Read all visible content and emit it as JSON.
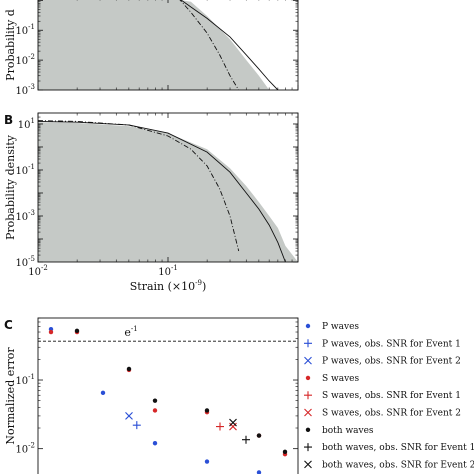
{
  "chart_data": [
    {
      "panel": "",
      "type": "area",
      "title": "",
      "xlabel": "",
      "ylabel": "Probability d",
      "yscale": "log",
      "xscale": "log",
      "xlim": [
        0.01,
        1.0
      ],
      "ylim": [
        0.001,
        1.2
      ],
      "y_tick_labels": [
        "10^{-1}",
        "10^{-2}",
        "10^{-3}"
      ],
      "series": [
        {
          "style": "histogram",
          "color": "#c5c9c6",
          "x": [
            0.01,
            0.02,
            0.05,
            0.1,
            0.15,
            0.2,
            0.3,
            0.4,
            0.5,
            0.6
          ],
          "y": [
            1.2,
            1.2,
            1.2,
            1.2,
            0.9,
            0.3,
            0.05,
            0.01,
            0.003,
            0.001
          ]
        },
        {
          "style": "solid",
          "color": "#111111",
          "x": [
            0.12,
            0.15,
            0.2,
            0.3,
            0.4,
            0.5,
            0.6,
            0.7
          ],
          "y": [
            1.2,
            0.6,
            0.25,
            0.06,
            0.015,
            0.005,
            0.002,
            0.001
          ]
        },
        {
          "style": "dash-dot",
          "color": "#111111",
          "x": [
            0.12,
            0.15,
            0.2,
            0.25,
            0.3,
            0.35
          ],
          "y": [
            1.2,
            0.4,
            0.08,
            0.015,
            0.003,
            0.001
          ]
        }
      ],
      "grid": false
    },
    {
      "panel": "B",
      "type": "area",
      "title": "",
      "xlabel": "Strain (×10^{-9})",
      "ylabel": "Probability density",
      "yscale": "log",
      "xscale": "log",
      "xlim": [
        0.01,
        1.0
      ],
      "ylim": [
        1e-05,
        30
      ],
      "x_tick_labels": [
        "10^{-2}",
        "10^{-1}"
      ],
      "y_tick_labels": [
        "10^{1}",
        "10^{-1}",
        "10^{-3}",
        "10^{-5}"
      ],
      "series": [
        {
          "style": "histogram",
          "color": "#c5c9c6",
          "x": [
            0.01,
            0.02,
            0.05,
            0.1,
            0.2,
            0.3,
            0.4,
            0.5,
            0.6,
            0.7,
            0.8,
            1.0
          ],
          "y": [
            12,
            11,
            8,
            4,
            0.8,
            0.12,
            0.02,
            0.004,
            0.001,
            0.0003,
            5e-05,
            1e-05
          ]
        },
        {
          "style": "solid",
          "color": "#111111",
          "x": [
            0.01,
            0.02,
            0.05,
            0.1,
            0.2,
            0.3,
            0.4,
            0.5,
            0.6,
            0.7,
            0.8
          ],
          "y": [
            13,
            12,
            9,
            4,
            0.6,
            0.08,
            0.01,
            0.002,
            0.0004,
            7e-05,
            1e-05
          ]
        },
        {
          "style": "dash-dot",
          "color": "#111111",
          "x": [
            0.01,
            0.02,
            0.05,
            0.1,
            0.15,
            0.2,
            0.25,
            0.3,
            0.35
          ],
          "y": [
            14,
            13,
            9,
            3,
            0.8,
            0.15,
            0.015,
            0.001,
            3e-05
          ]
        }
      ],
      "grid": false
    },
    {
      "panel": "C",
      "type": "scatter",
      "title": "",
      "xlabel": "",
      "ylabel": "Normalized error",
      "yscale": "log",
      "ylim": [
        0.004,
        0.8
      ],
      "xlim": [
        0.5,
        10.5
      ],
      "y_tick_labels": [
        "10^{-1}",
        "10^{-2}"
      ],
      "hline": {
        "y": 0.3679,
        "label": "e^{-1}",
        "style": "dashed"
      },
      "legend_position": "right",
      "series": [
        {
          "name": "P waves",
          "color": "#2a4fd6",
          "marker": "dot",
          "x": [
            1,
            3,
            5,
            7,
            9
          ],
          "y": [
            0.55,
            0.065,
            0.012,
            0.0065,
            0.0045
          ]
        },
        {
          "name": "P waves, obs. SNR for Event 1",
          "color": "#2a4fd6",
          "marker": "plus",
          "x": [
            4.3
          ],
          "y": [
            0.022
          ]
        },
        {
          "name": "P waves, obs. SNR for Event 2",
          "color": "#2a4fd6",
          "marker": "x",
          "x": [
            4
          ],
          "y": [
            0.03
          ]
        },
        {
          "name": "S waves",
          "color": "#d62728",
          "marker": "dot",
          "x": [
            1,
            2,
            4,
            5,
            7,
            9,
            10
          ],
          "y": [
            0.5,
            0.5,
            0.14,
            0.036,
            0.034,
            0.0155,
            0.0083
          ]
        },
        {
          "name": "S waves, obs. SNR for Event 1",
          "color": "#d62728",
          "marker": "plus",
          "x": [
            7.5
          ],
          "y": [
            0.021
          ]
        },
        {
          "name": "S waves, obs. SNR for Event 2",
          "color": "#d62728",
          "marker": "x",
          "x": [
            8
          ],
          "y": [
            0.021
          ]
        },
        {
          "name": "both waves",
          "color": "#111111",
          "marker": "dot",
          "x": [
            2,
            4,
            5,
            7,
            9,
            10
          ],
          "y": [
            0.52,
            0.145,
            0.05,
            0.036,
            0.0155,
            0.009
          ]
        },
        {
          "name": "both waves, obs. SNR for Event 1",
          "color": "#111111",
          "marker": "plus",
          "x": [
            8.5
          ],
          "y": [
            0.0135
          ]
        },
        {
          "name": "both waves, obs. SNR for Event 2",
          "color": "#111111",
          "marker": "x",
          "x": [
            8
          ],
          "y": [
            0.024
          ]
        }
      ],
      "grid": false
    }
  ]
}
